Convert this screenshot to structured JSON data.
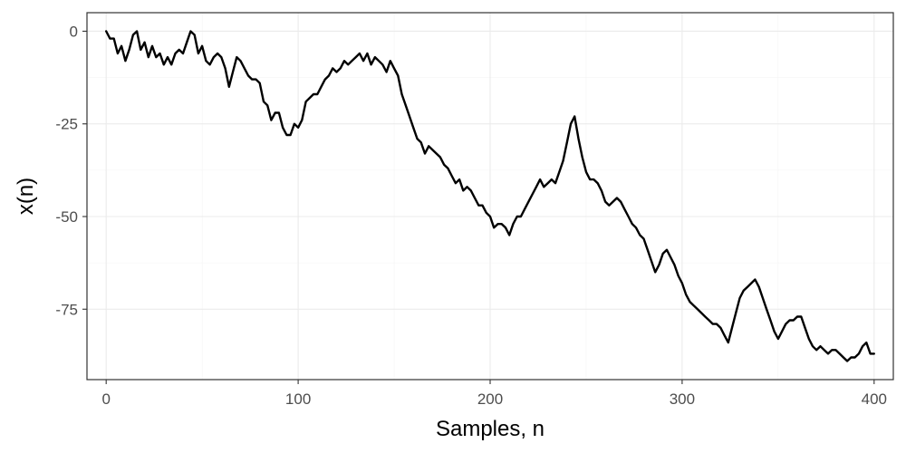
{
  "chart_data": {
    "type": "line",
    "title": "",
    "xlabel": "Samples, n",
    "ylabel": "x(n)",
    "xlim": [
      -10,
      410
    ],
    "ylim": [
      -94,
      5
    ],
    "x_ticks": [
      0,
      100,
      200,
      300,
      400
    ],
    "x_tick_labels": [
      "0",
      "100",
      "200",
      "300",
      "400"
    ],
    "y_ticks": [
      0,
      -25,
      -50,
      -75
    ],
    "y_tick_labels": [
      "0",
      "-25",
      "-50",
      "-75"
    ],
    "grid": true,
    "legend": "none",
    "series": [
      {
        "color": "#000000",
        "points": [
          [
            0,
            0
          ],
          [
            2,
            -2
          ],
          [
            4,
            -2
          ],
          [
            6,
            -6
          ],
          [
            8,
            -4
          ],
          [
            10,
            -8
          ],
          [
            12,
            -5
          ],
          [
            14,
            -1
          ],
          [
            16,
            0
          ],
          [
            18,
            -5
          ],
          [
            20,
            -3
          ],
          [
            22,
            -7
          ],
          [
            24,
            -4
          ],
          [
            26,
            -7
          ],
          [
            28,
            -6
          ],
          [
            30,
            -9
          ],
          [
            32,
            -7
          ],
          [
            34,
            -9
          ],
          [
            36,
            -6
          ],
          [
            38,
            -5
          ],
          [
            40,
            -6
          ],
          [
            42,
            -3
          ],
          [
            44,
            0
          ],
          [
            46,
            -1
          ],
          [
            48,
            -6
          ],
          [
            50,
            -4
          ],
          [
            52,
            -8
          ],
          [
            54,
            -9
          ],
          [
            56,
            -7
          ],
          [
            58,
            -6
          ],
          [
            60,
            -7
          ],
          [
            62,
            -10
          ],
          [
            64,
            -15
          ],
          [
            66,
            -11
          ],
          [
            68,
            -7
          ],
          [
            70,
            -8
          ],
          [
            72,
            -10
          ],
          [
            74,
            -12
          ],
          [
            76,
            -13
          ],
          [
            78,
            -13
          ],
          [
            80,
            -14
          ],
          [
            82,
            -19
          ],
          [
            84,
            -20
          ],
          [
            86,
            -24
          ],
          [
            88,
            -22
          ],
          [
            90,
            -22
          ],
          [
            92,
            -26
          ],
          [
            94,
            -28
          ],
          [
            96,
            -28
          ],
          [
            98,
            -25
          ],
          [
            100,
            -26
          ],
          [
            102,
            -24
          ],
          [
            104,
            -19
          ],
          [
            106,
            -18
          ],
          [
            108,
            -17
          ],
          [
            110,
            -17
          ],
          [
            112,
            -15
          ],
          [
            114,
            -13
          ],
          [
            116,
            -12
          ],
          [
            118,
            -10
          ],
          [
            120,
            -11
          ],
          [
            122,
            -10
          ],
          [
            124,
            -8
          ],
          [
            126,
            -9
          ],
          [
            128,
            -8
          ],
          [
            130,
            -7
          ],
          [
            132,
            -6
          ],
          [
            134,
            -8
          ],
          [
            136,
            -6
          ],
          [
            138,
            -9
          ],
          [
            140,
            -7
          ],
          [
            142,
            -8
          ],
          [
            144,
            -9
          ],
          [
            146,
            -11
          ],
          [
            148,
            -8
          ],
          [
            150,
            -10
          ],
          [
            152,
            -12
          ],
          [
            154,
            -17
          ],
          [
            156,
            -20
          ],
          [
            158,
            -23
          ],
          [
            160,
            -26
          ],
          [
            162,
            -29
          ],
          [
            164,
            -30
          ],
          [
            166,
            -33
          ],
          [
            168,
            -31
          ],
          [
            170,
            -32
          ],
          [
            172,
            -33
          ],
          [
            174,
            -34
          ],
          [
            176,
            -36
          ],
          [
            178,
            -37
          ],
          [
            180,
            -39
          ],
          [
            182,
            -41
          ],
          [
            184,
            -40
          ],
          [
            186,
            -43
          ],
          [
            188,
            -42
          ],
          [
            190,
            -43
          ],
          [
            192,
            -45
          ],
          [
            194,
            -47
          ],
          [
            196,
            -47
          ],
          [
            198,
            -49
          ],
          [
            200,
            -50
          ],
          [
            202,
            -53
          ],
          [
            204,
            -52
          ],
          [
            206,
            -52
          ],
          [
            208,
            -53
          ],
          [
            210,
            -55
          ],
          [
            212,
            -52
          ],
          [
            214,
            -50
          ],
          [
            216,
            -50
          ],
          [
            218,
            -48
          ],
          [
            220,
            -46
          ],
          [
            222,
            -44
          ],
          [
            224,
            -42
          ],
          [
            226,
            -40
          ],
          [
            228,
            -42
          ],
          [
            230,
            -41
          ],
          [
            232,
            -40
          ],
          [
            234,
            -41
          ],
          [
            236,
            -38
          ],
          [
            238,
            -35
          ],
          [
            240,
            -30
          ],
          [
            242,
            -25
          ],
          [
            244,
            -23
          ],
          [
            246,
            -29
          ],
          [
            248,
            -34
          ],
          [
            250,
            -38
          ],
          [
            252,
            -40
          ],
          [
            254,
            -40
          ],
          [
            256,
            -41
          ],
          [
            258,
            -43
          ],
          [
            260,
            -46
          ],
          [
            262,
            -47
          ],
          [
            264,
            -46
          ],
          [
            266,
            -45
          ],
          [
            268,
            -46
          ],
          [
            270,
            -48
          ],
          [
            272,
            -50
          ],
          [
            274,
            -52
          ],
          [
            276,
            -53
          ],
          [
            278,
            -55
          ],
          [
            280,
            -56
          ],
          [
            282,
            -59
          ],
          [
            284,
            -62
          ],
          [
            286,
            -65
          ],
          [
            288,
            -63
          ],
          [
            290,
            -60
          ],
          [
            292,
            -59
          ],
          [
            294,
            -61
          ],
          [
            296,
            -63
          ],
          [
            298,
            -66
          ],
          [
            300,
            -68
          ],
          [
            302,
            -71
          ],
          [
            304,
            -73
          ],
          [
            306,
            -74
          ],
          [
            308,
            -75
          ],
          [
            310,
            -76
          ],
          [
            312,
            -77
          ],
          [
            314,
            -78
          ],
          [
            316,
            -79
          ],
          [
            318,
            -79
          ],
          [
            320,
            -80
          ],
          [
            322,
            -82
          ],
          [
            324,
            -84
          ],
          [
            326,
            -80
          ],
          [
            328,
            -76
          ],
          [
            330,
            -72
          ],
          [
            332,
            -70
          ],
          [
            334,
            -69
          ],
          [
            336,
            -68
          ],
          [
            338,
            -67
          ],
          [
            340,
            -69
          ],
          [
            342,
            -72
          ],
          [
            344,
            -75
          ],
          [
            346,
            -78
          ],
          [
            348,
            -81
          ],
          [
            350,
            -83
          ],
          [
            352,
            -81
          ],
          [
            354,
            -79
          ],
          [
            356,
            -78
          ],
          [
            358,
            -78
          ],
          [
            360,
            -77
          ],
          [
            362,
            -77
          ],
          [
            364,
            -80
          ],
          [
            366,
            -83
          ],
          [
            368,
            -85
          ],
          [
            370,
            -86
          ],
          [
            372,
            -85
          ],
          [
            374,
            -86
          ],
          [
            376,
            -87
          ],
          [
            378,
            -86
          ],
          [
            380,
            -86
          ],
          [
            382,
            -87
          ],
          [
            384,
            -88
          ],
          [
            386,
            -89
          ],
          [
            388,
            -88
          ],
          [
            390,
            -88
          ],
          [
            392,
            -87
          ],
          [
            394,
            -85
          ],
          [
            396,
            -84
          ],
          [
            398,
            -87
          ],
          [
            400,
            -87
          ]
        ]
      }
    ]
  }
}
